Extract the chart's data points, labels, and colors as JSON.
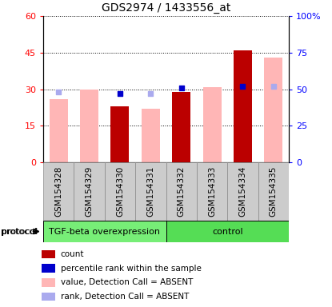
{
  "title": "GDS2974 / 1433556_at",
  "samples": [
    "GSM154328",
    "GSM154329",
    "GSM154330",
    "GSM154331",
    "GSM154332",
    "GSM154333",
    "GSM154334",
    "GSM154335"
  ],
  "red_bars": [
    0,
    0,
    23,
    0,
    29,
    0,
    46,
    0
  ],
  "pink_bars": [
    26,
    30,
    0,
    22,
    0,
    31,
    0,
    43
  ],
  "blue_squares_present": [
    0,
    0,
    47,
    0,
    51,
    0,
    52,
    0
  ],
  "blue_squares_absent": [
    48,
    0,
    0,
    47,
    0,
    0,
    0,
    52
  ],
  "groups": [
    {
      "label": "TGF-beta overexpression",
      "start": 0,
      "end": 4,
      "color": "#77EE77"
    },
    {
      "label": "control",
      "start": 4,
      "end": 8,
      "color": "#55DD55"
    }
  ],
  "protocol_label": "protocol",
  "ylim_left": [
    0,
    60
  ],
  "ylim_right": [
    0,
    100
  ],
  "yticks_left": [
    0,
    15,
    30,
    45,
    60
  ],
  "ytick_labels_left": [
    "0",
    "15",
    "30",
    "45",
    "60"
  ],
  "yticks_right": [
    0,
    25,
    50,
    75,
    100
  ],
  "ytick_labels_right": [
    "0",
    "25",
    "50",
    "75",
    "100%"
  ],
  "red_color": "#BB0000",
  "pink_color": "#FFB6B6",
  "blue_present_color": "#0000CC",
  "blue_absent_color": "#AAAAEE",
  "bar_width": 0.6,
  "sample_bg": "#CCCCCC",
  "plot_bg": "#FFFFFF",
  "legend_items": [
    {
      "label": "count",
      "color": "#BB0000"
    },
    {
      "label": "percentile rank within the sample",
      "color": "#0000CC"
    },
    {
      "label": "value, Detection Call = ABSENT",
      "color": "#FFB6B6"
    },
    {
      "label": "rank, Detection Call = ABSENT",
      "color": "#AAAAEE"
    }
  ]
}
